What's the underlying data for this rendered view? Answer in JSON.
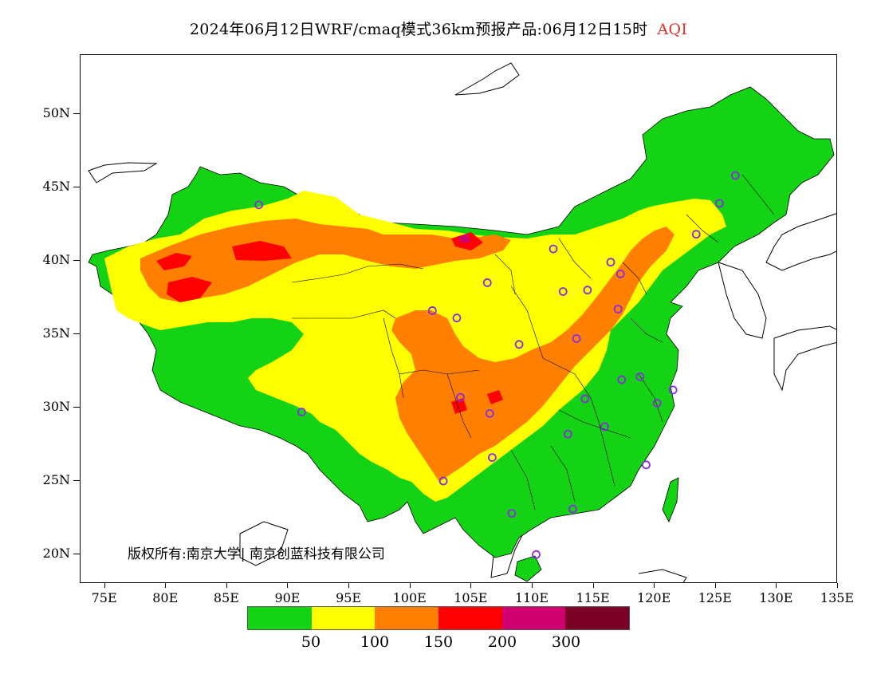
{
  "header": {
    "title": "2024年06月12日WRF/cmaq模式36km预报产品:06月12日15时",
    "variable": "AQI"
  },
  "axes": {
    "y_ticks": [
      {
        "label": "50N",
        "lat": 50
      },
      {
        "label": "45N",
        "lat": 45
      },
      {
        "label": "40N",
        "lat": 40
      },
      {
        "label": "35N",
        "lat": 35
      },
      {
        "label": "30N",
        "lat": 30
      },
      {
        "label": "25N",
        "lat": 25
      },
      {
        "label": "20N",
        "lat": 20
      }
    ],
    "x_ticks": [
      {
        "label": "75E",
        "lon": 75
      },
      {
        "label": "80E",
        "lon": 80
      },
      {
        "label": "85E",
        "lon": 85
      },
      {
        "label": "90E",
        "lon": 90
      },
      {
        "label": "95E",
        "lon": 95
      },
      {
        "label": "100E",
        "lon": 100
      },
      {
        "label": "105E",
        "lon": 105
      },
      {
        "label": "110E",
        "lon": 110
      },
      {
        "label": "115E",
        "lon": 115
      },
      {
        "label": "120E",
        "lon": 120
      },
      {
        "label": "125E",
        "lon": 125
      },
      {
        "label": "130E",
        "lon": 130
      },
      {
        "label": "135E",
        "lon": 135
      }
    ],
    "lon_range": [
      73,
      135
    ],
    "lat_range": [
      18,
      54
    ]
  },
  "copyright": "版权所有:南京大学| 南京创蓝科技有限公司",
  "legend": {
    "colors": [
      "#14d214",
      "#ffff00",
      "#ff8000",
      "#ff0000",
      "#d00070",
      "#7a0026"
    ],
    "labels": [
      "50",
      "100",
      "150",
      "200",
      "300"
    ]
  },
  "colors": {
    "good": "#14d214",
    "moderate": "#ffff00",
    "sensitive": "#ff8000",
    "unhealthy": "#ff0000",
    "very_unhealthy": "#d00070",
    "station_marker": "#8a2be2"
  },
  "stations": [
    {
      "lon": 87.6,
      "lat": 43.8
    },
    {
      "lon": 91.1,
      "lat": 29.7
    },
    {
      "lon": 101.8,
      "lat": 36.6
    },
    {
      "lon": 103.8,
      "lat": 36.1
    },
    {
      "lon": 106.3,
      "lat": 38.5
    },
    {
      "lon": 111.7,
      "lat": 40.8
    },
    {
      "lon": 112.5,
      "lat": 37.9
    },
    {
      "lon": 114.5,
      "lat": 38.0
    },
    {
      "lon": 116.4,
      "lat": 39.9
    },
    {
      "lon": 117.2,
      "lat": 39.1
    },
    {
      "lon": 117.0,
      "lat": 36.7
    },
    {
      "lon": 113.6,
      "lat": 34.7
    },
    {
      "lon": 108.9,
      "lat": 34.3
    },
    {
      "lon": 104.1,
      "lat": 30.7
    },
    {
      "lon": 106.5,
      "lat": 29.6
    },
    {
      "lon": 106.7,
      "lat": 26.6
    },
    {
      "lon": 102.7,
      "lat": 25.0
    },
    {
      "lon": 108.3,
      "lat": 22.8
    },
    {
      "lon": 113.3,
      "lat": 23.1
    },
    {
      "lon": 110.3,
      "lat": 20.0
    },
    {
      "lon": 112.9,
      "lat": 28.2
    },
    {
      "lon": 114.3,
      "lat": 30.6
    },
    {
      "lon": 115.9,
      "lat": 28.7
    },
    {
      "lon": 117.3,
      "lat": 31.9
    },
    {
      "lon": 118.8,
      "lat": 32.1
    },
    {
      "lon": 120.2,
      "lat": 30.3
    },
    {
      "lon": 121.5,
      "lat": 31.2
    },
    {
      "lon": 119.3,
      "lat": 26.1
    },
    {
      "lon": 123.4,
      "lat": 41.8
    },
    {
      "lon": 125.3,
      "lat": 43.9
    },
    {
      "lon": 126.6,
      "lat": 45.8
    }
  ]
}
